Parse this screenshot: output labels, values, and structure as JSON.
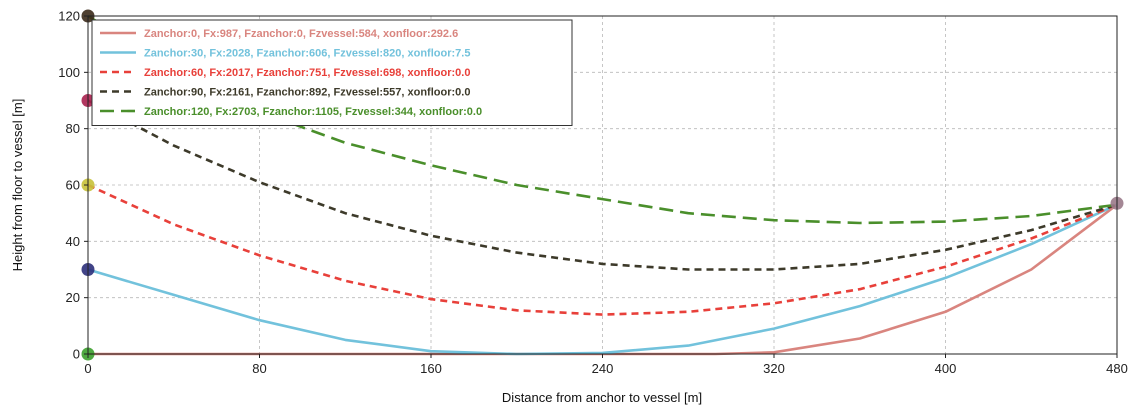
{
  "chart_data": {
    "type": "line",
    "title": "",
    "xlabel": "Distance from anchor to vessel [m]",
    "ylabel": "Height from floor to vessel [m]",
    "xlim": [
      0,
      480
    ],
    "ylim": [
      0,
      120
    ],
    "xticks": [
      0,
      80,
      160,
      240,
      320,
      400,
      480
    ],
    "yticks": [
      0,
      20,
      40,
      60,
      80,
      100,
      120
    ],
    "grid": true,
    "legend_position": "top-left",
    "series": [
      {
        "name": "Zanchor:0, Fx:987, Fzanchor:0, Fzvessel:584, xonfloor:292.6",
        "color": "#d9857f",
        "style": "solid",
        "x": [
          0,
          100,
          200,
          292.6,
          320,
          360,
          400,
          440,
          480
        ],
        "y": [
          0,
          0,
          0,
          0,
          0.6,
          5.5,
          15,
          30,
          53
        ]
      },
      {
        "name": "Zanchor:30, Fx:2028, Fzanchor:606, Fzvessel:820, xonfloor:7.5",
        "color": "#72c2dc",
        "style": "solid",
        "x": [
          0,
          40,
          80,
          120,
          160,
          200,
          240,
          280,
          320,
          360,
          400,
          440,
          480
        ],
        "y": [
          30,
          21,
          12,
          5,
          1,
          0,
          0.4,
          3,
          9,
          17,
          27,
          39,
          53
        ]
      },
      {
        "name": "Zanchor:60, Fx:2017, Fzanchor:751, Fzvessel:698, xonfloor:0.0",
        "color": "#e8403a",
        "style": "dash",
        "x": [
          0,
          40,
          80,
          120,
          160,
          200,
          240,
          280,
          320,
          360,
          400,
          440,
          480
        ],
        "y": [
          60,
          46,
          35,
          26,
          19.5,
          15.5,
          14,
          15,
          18,
          23,
          31,
          41,
          53
        ]
      },
      {
        "name": "Zanchor:90, Fx:2161, Fzanchor:892, Fzvessel:557, xonfloor:0.0",
        "color": "#3d3a2a",
        "style": "dash",
        "x": [
          0,
          40,
          80,
          120,
          160,
          200,
          240,
          280,
          320,
          360,
          400,
          440,
          480
        ],
        "y": [
          90,
          74,
          61,
          50,
          42,
          36,
          32,
          30,
          30,
          32,
          37,
          44,
          53
        ]
      },
      {
        "name": "Zanchor:120, Fx:2703, Fzanchor:1105, Fzvessel:344, xonfloor:0.0",
        "color": "#4a8f2b",
        "style": "longdash",
        "x": [
          0,
          40,
          80,
          120,
          160,
          200,
          240,
          280,
          320,
          360,
          400,
          440,
          480
        ],
        "y": [
          120,
          101,
          86,
          75,
          67,
          60,
          55,
          50,
          47.5,
          46.5,
          47,
          49,
          53
        ]
      }
    ],
    "markers": [
      {
        "x": 0,
        "y": 0,
        "color": "#3ca02c"
      },
      {
        "x": 0,
        "y": 30,
        "color": "#2c2f7a"
      },
      {
        "x": 0,
        "y": 60,
        "color": "#c8c23a"
      },
      {
        "x": 0,
        "y": 90,
        "color": "#a8204e"
      },
      {
        "x": 0,
        "y": 120,
        "color": "#3b2a1a"
      },
      {
        "x": 480,
        "y": 53.5,
        "color": "#9a7a8a"
      }
    ]
  }
}
